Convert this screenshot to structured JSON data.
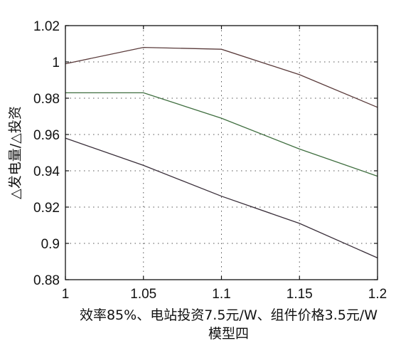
{
  "chart_data": {
    "type": "line",
    "xlabel": "效率85%、电站投资7.5元/W、组件价格3.5元/W",
    "subtitle": "模型四",
    "ylabel": "△发电量/△投资",
    "xlim": [
      1,
      1.2
    ],
    "ylim": [
      0.88,
      1.02
    ],
    "x_ticks": [
      "1",
      "1.05",
      "1.1",
      "1.15",
      "1.2"
    ],
    "y_ticks": [
      "0.88",
      "0.9",
      "0.92",
      "0.94",
      "0.96",
      "0.98",
      "1",
      "1.02"
    ],
    "grid": true,
    "x": [
      1,
      1.05,
      1.1,
      1.15,
      1.2
    ],
    "series": [
      {
        "color": "#5a3b3b",
        "values": [
          0.999,
          1.008,
          1.007,
          0.993,
          0.975
        ]
      },
      {
        "color": "#3f6e3f",
        "values": [
          0.983,
          0.983,
          0.969,
          0.952,
          0.937
        ]
      },
      {
        "color": "#3a2f3a",
        "values": [
          0.958,
          0.943,
          0.926,
          0.911,
          0.892
        ]
      }
    ]
  }
}
